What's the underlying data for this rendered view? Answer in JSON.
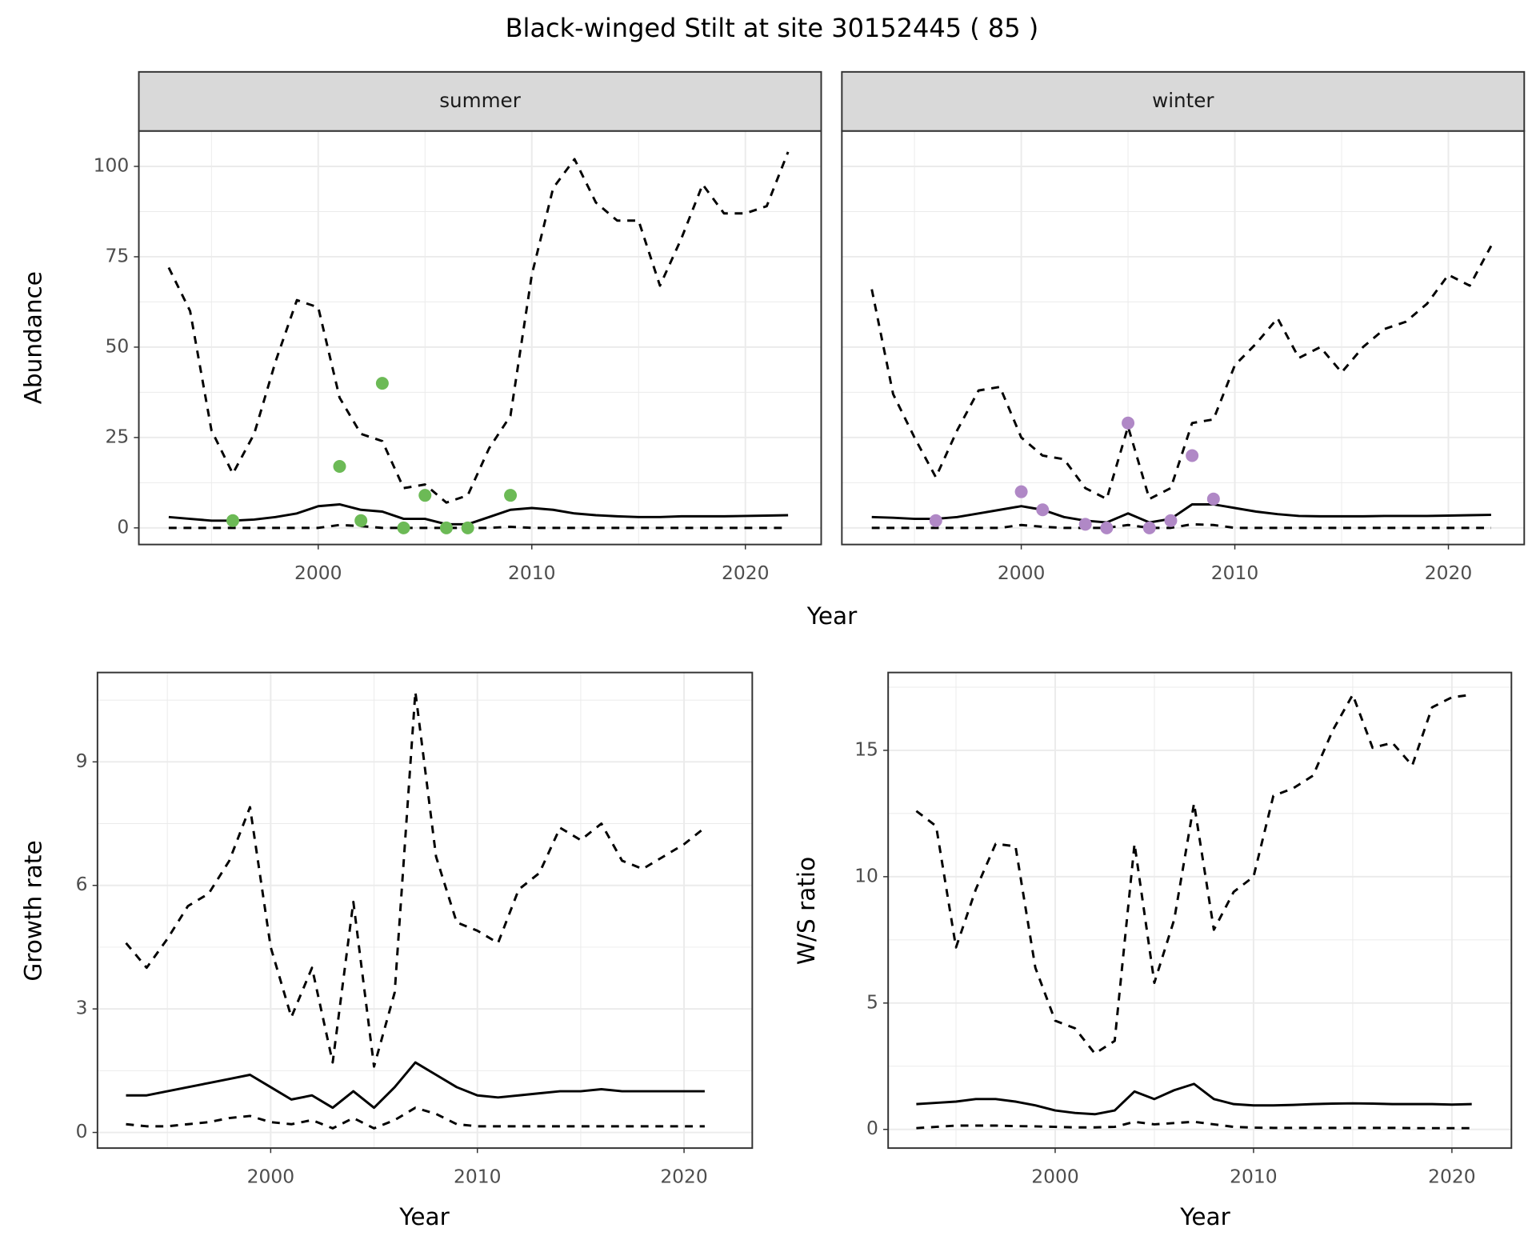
{
  "title": "Black-winged Stilt at site 30152445 ( 85 )",
  "chart_data": [
    {
      "type": "line",
      "facet": "summer",
      "xlabel": "Year",
      "ylabel": "Abundance",
      "x": [
        1993,
        1994,
        1995,
        1996,
        1997,
        1998,
        1999,
        2000,
        2001,
        2002,
        2003,
        2004,
        2005,
        2006,
        2007,
        2008,
        2009,
        2010,
        2011,
        2012,
        2013,
        2014,
        2015,
        2016,
        2017,
        2018,
        2019,
        2020,
        2021,
        2022
      ],
      "xlim": [
        1991.6,
        2023.55
      ],
      "xticks": [
        2000,
        2010,
        2020
      ],
      "xminor": [
        1995,
        2005,
        2015
      ],
      "ylim": [
        -4.6,
        109.8
      ],
      "yticks": [
        0,
        25,
        50,
        75,
        100
      ],
      "yminor": [
        12.5,
        37.5,
        62.5,
        87.5
      ],
      "yticklabels": true,
      "series": [
        {
          "color": "#000000",
          "dash": true,
          "values": [
            72,
            60,
            27,
            15,
            26,
            46,
            63,
            61,
            36,
            26,
            24,
            11,
            12,
            7,
            9,
            22,
            31,
            70,
            94,
            102,
            90,
            85,
            85,
            67,
            80,
            95,
            87,
            87,
            89,
            104
          ]
        },
        {
          "color": "#000000",
          "dash": false,
          "values": [
            3,
            2.5,
            2,
            2,
            2.3,
            3,
            4,
            6,
            6.5,
            5,
            4.5,
            2.5,
            2.5,
            1,
            1,
            3,
            5,
            5.5,
            5,
            4,
            3.5,
            3.2,
            3,
            3,
            3.2,
            3.2,
            3.2,
            3.3,
            3.4,
            3.5
          ]
        },
        {
          "color": "#000000",
          "dash": true,
          "values": [
            0,
            0,
            0,
            0,
            0,
            0,
            0,
            0,
            0.8,
            0.5,
            0,
            0,
            0,
            0,
            0,
            0,
            0.3,
            0,
            0,
            0,
            0,
            0,
            0,
            0,
            0,
            0,
            0,
            0,
            0,
            0
          ]
        },
        {
          "color": "#6cba56",
          "points": true,
          "values": [
            null,
            null,
            null,
            2,
            null,
            null,
            null,
            null,
            17,
            2,
            40,
            0,
            9,
            0,
            0,
            null,
            9,
            null,
            null,
            null,
            null,
            null,
            null,
            null,
            null,
            null,
            null,
            null,
            null,
            null
          ]
        }
      ]
    },
    {
      "type": "line",
      "facet": "winter",
      "x": [
        1993,
        1994,
        1995,
        1996,
        1997,
        1998,
        1999,
        2000,
        2001,
        2002,
        2003,
        2004,
        2005,
        2006,
        2007,
        2008,
        2009,
        2010,
        2011,
        2012,
        2013,
        2014,
        2015,
        2016,
        2017,
        2018,
        2019,
        2020,
        2021,
        2022
      ],
      "xlim": [
        1991.6,
        2023.55
      ],
      "xticks": [
        2000,
        2010,
        2020
      ],
      "xminor": [
        1995,
        2005,
        2015
      ],
      "ylim": [
        -4.6,
        109.8
      ],
      "yticks": [
        0,
        25,
        50,
        75,
        100
      ],
      "yminor": [
        12.5,
        37.5,
        62.5,
        87.5
      ],
      "yticklabels": false,
      "series": [
        {
          "color": "#000000",
          "dash": true,
          "values": [
            66,
            37,
            25,
            14,
            27,
            38,
            39,
            25,
            20,
            19,
            11,
            8,
            28,
            8,
            11,
            29,
            30,
            45,
            51,
            58,
            47,
            50,
            43,
            50,
            55,
            57,
            62,
            70,
            67,
            78
          ]
        },
        {
          "color": "#000000",
          "dash": false,
          "values": [
            3,
            2.8,
            2.5,
            2.5,
            3,
            4,
            5,
            6,
            5,
            3,
            2,
            1.5,
            4,
            1.5,
            2.5,
            6.5,
            6.5,
            5.5,
            4.5,
            3.8,
            3.3,
            3.2,
            3.2,
            3.2,
            3.3,
            3.3,
            3.3,
            3.4,
            3.5,
            3.6
          ]
        },
        {
          "color": "#000000",
          "dash": true,
          "values": [
            0,
            0,
            0,
            0,
            0,
            0,
            0,
            0.8,
            0.3,
            0,
            0,
            0,
            0.8,
            0,
            0,
            1,
            0.8,
            0,
            0,
            0,
            0,
            0,
            0,
            0,
            0,
            0,
            0,
            0,
            0,
            0
          ]
        },
        {
          "color": "#b088c6",
          "points": true,
          "values": [
            null,
            null,
            null,
            2,
            null,
            null,
            null,
            10,
            5,
            null,
            1,
            0,
            29,
            0,
            2,
            20,
            8,
            null,
            null,
            null,
            null,
            null,
            null,
            null,
            null,
            null,
            null,
            null,
            null,
            null
          ]
        }
      ]
    },
    {
      "type": "line",
      "xlabel": "Year",
      "ylabel": "Growth rate",
      "x": [
        1993,
        1994,
        1995,
        1996,
        1997,
        1998,
        1999,
        2000,
        2001,
        2002,
        2003,
        2004,
        2005,
        2006,
        2007,
        2008,
        2009,
        2010,
        2011,
        2012,
        2013,
        2014,
        2015,
        2016,
        2017,
        2018,
        2019,
        2020,
        2021
      ],
      "xlim": [
        1991.62,
        2023.3
      ],
      "xticks": [
        2000,
        2010,
        2020
      ],
      "xminor": [
        1995,
        2005,
        2015
      ],
      "ylim": [
        -0.38,
        11.17
      ],
      "yticks": [
        0,
        3,
        6,
        9
      ],
      "yminor": [
        1.5,
        4.5,
        7.5,
        10.5
      ],
      "yticklabels": true,
      "series": [
        {
          "color": "#000000",
          "dash": true,
          "values": [
            4.6,
            4.0,
            4.7,
            5.5,
            5.8,
            6.6,
            7.9,
            4.5,
            2.8,
            4.0,
            1.7,
            5.6,
            1.6,
            3.4,
            10.7,
            6.7,
            5.1,
            4.9,
            4.6,
            5.9,
            6.3,
            7.4,
            7.1,
            7.5,
            6.6,
            6.4,
            6.7,
            7.0,
            7.4
          ]
        },
        {
          "color": "#000000",
          "dash": false,
          "values": [
            0.9,
            0.9,
            1.0,
            1.1,
            1.2,
            1.3,
            1.4,
            1.1,
            0.8,
            0.9,
            0.6,
            1.0,
            0.6,
            1.1,
            1.7,
            1.4,
            1.1,
            0.9,
            0.85,
            0.9,
            0.95,
            1.0,
            1.0,
            1.05,
            1.0,
            1.0,
            1.0,
            1.0,
            1.0
          ]
        },
        {
          "color": "#000000",
          "dash": true,
          "values": [
            0.2,
            0.15,
            0.15,
            0.2,
            0.25,
            0.35,
            0.4,
            0.25,
            0.2,
            0.3,
            0.1,
            0.35,
            0.1,
            0.3,
            0.6,
            0.45,
            0.2,
            0.15,
            0.15,
            0.15,
            0.15,
            0.15,
            0.15,
            0.15,
            0.15,
            0.15,
            0.15,
            0.15,
            0.15
          ]
        }
      ]
    },
    {
      "type": "line",
      "xlabel": "Year",
      "ylabel": "W/S ratio",
      "x": [
        1993,
        1994,
        1995,
        1996,
        1997,
        1998,
        1999,
        2000,
        2001,
        2002,
        2003,
        2004,
        2005,
        2006,
        2007,
        2008,
        2009,
        2010,
        2011,
        2012,
        2013,
        2014,
        2015,
        2016,
        2017,
        2018,
        2019,
        2020,
        2021
      ],
      "xlim": [
        1991.58,
        2023.0
      ],
      "xticks": [
        2000,
        2010,
        2020
      ],
      "xminor": [
        1995,
        2005,
        2015
      ],
      "ylim": [
        -0.74,
        18.08
      ],
      "yticks": [
        0,
        5,
        10,
        15
      ],
      "yminor": [
        2.5,
        7.5,
        12.5,
        17.5
      ],
      "yticklabels": true,
      "series": [
        {
          "color": "#000000",
          "dash": true,
          "values": [
            12.6,
            12.0,
            7.2,
            9.5,
            11.3,
            11.2,
            6.4,
            4.3,
            4.0,
            3.0,
            3.5,
            11.3,
            5.8,
            8.3,
            12.9,
            7.9,
            9.4,
            10.0,
            13.2,
            13.5,
            14.0,
            15.8,
            17.2,
            15.1,
            15.3,
            14.4,
            16.7,
            17.1,
            17.2
          ]
        },
        {
          "color": "#000000",
          "dash": false,
          "values": [
            1.0,
            1.05,
            1.1,
            1.2,
            1.2,
            1.1,
            0.95,
            0.75,
            0.65,
            0.6,
            0.75,
            1.5,
            1.2,
            1.55,
            1.8,
            1.2,
            1.0,
            0.95,
            0.95,
            0.97,
            1.0,
            1.02,
            1.03,
            1.02,
            1.0,
            1.0,
            1.0,
            0.98,
            1.0
          ]
        },
        {
          "color": "#000000",
          "dash": true,
          "values": [
            0.05,
            0.1,
            0.15,
            0.15,
            0.15,
            0.13,
            0.12,
            0.1,
            0.08,
            0.08,
            0.1,
            0.3,
            0.2,
            0.25,
            0.3,
            0.2,
            0.1,
            0.07,
            0.06,
            0.06,
            0.06,
            0.06,
            0.06,
            0.06,
            0.06,
            0.05,
            0.05,
            0.05,
            0.05
          ]
        }
      ]
    }
  ]
}
